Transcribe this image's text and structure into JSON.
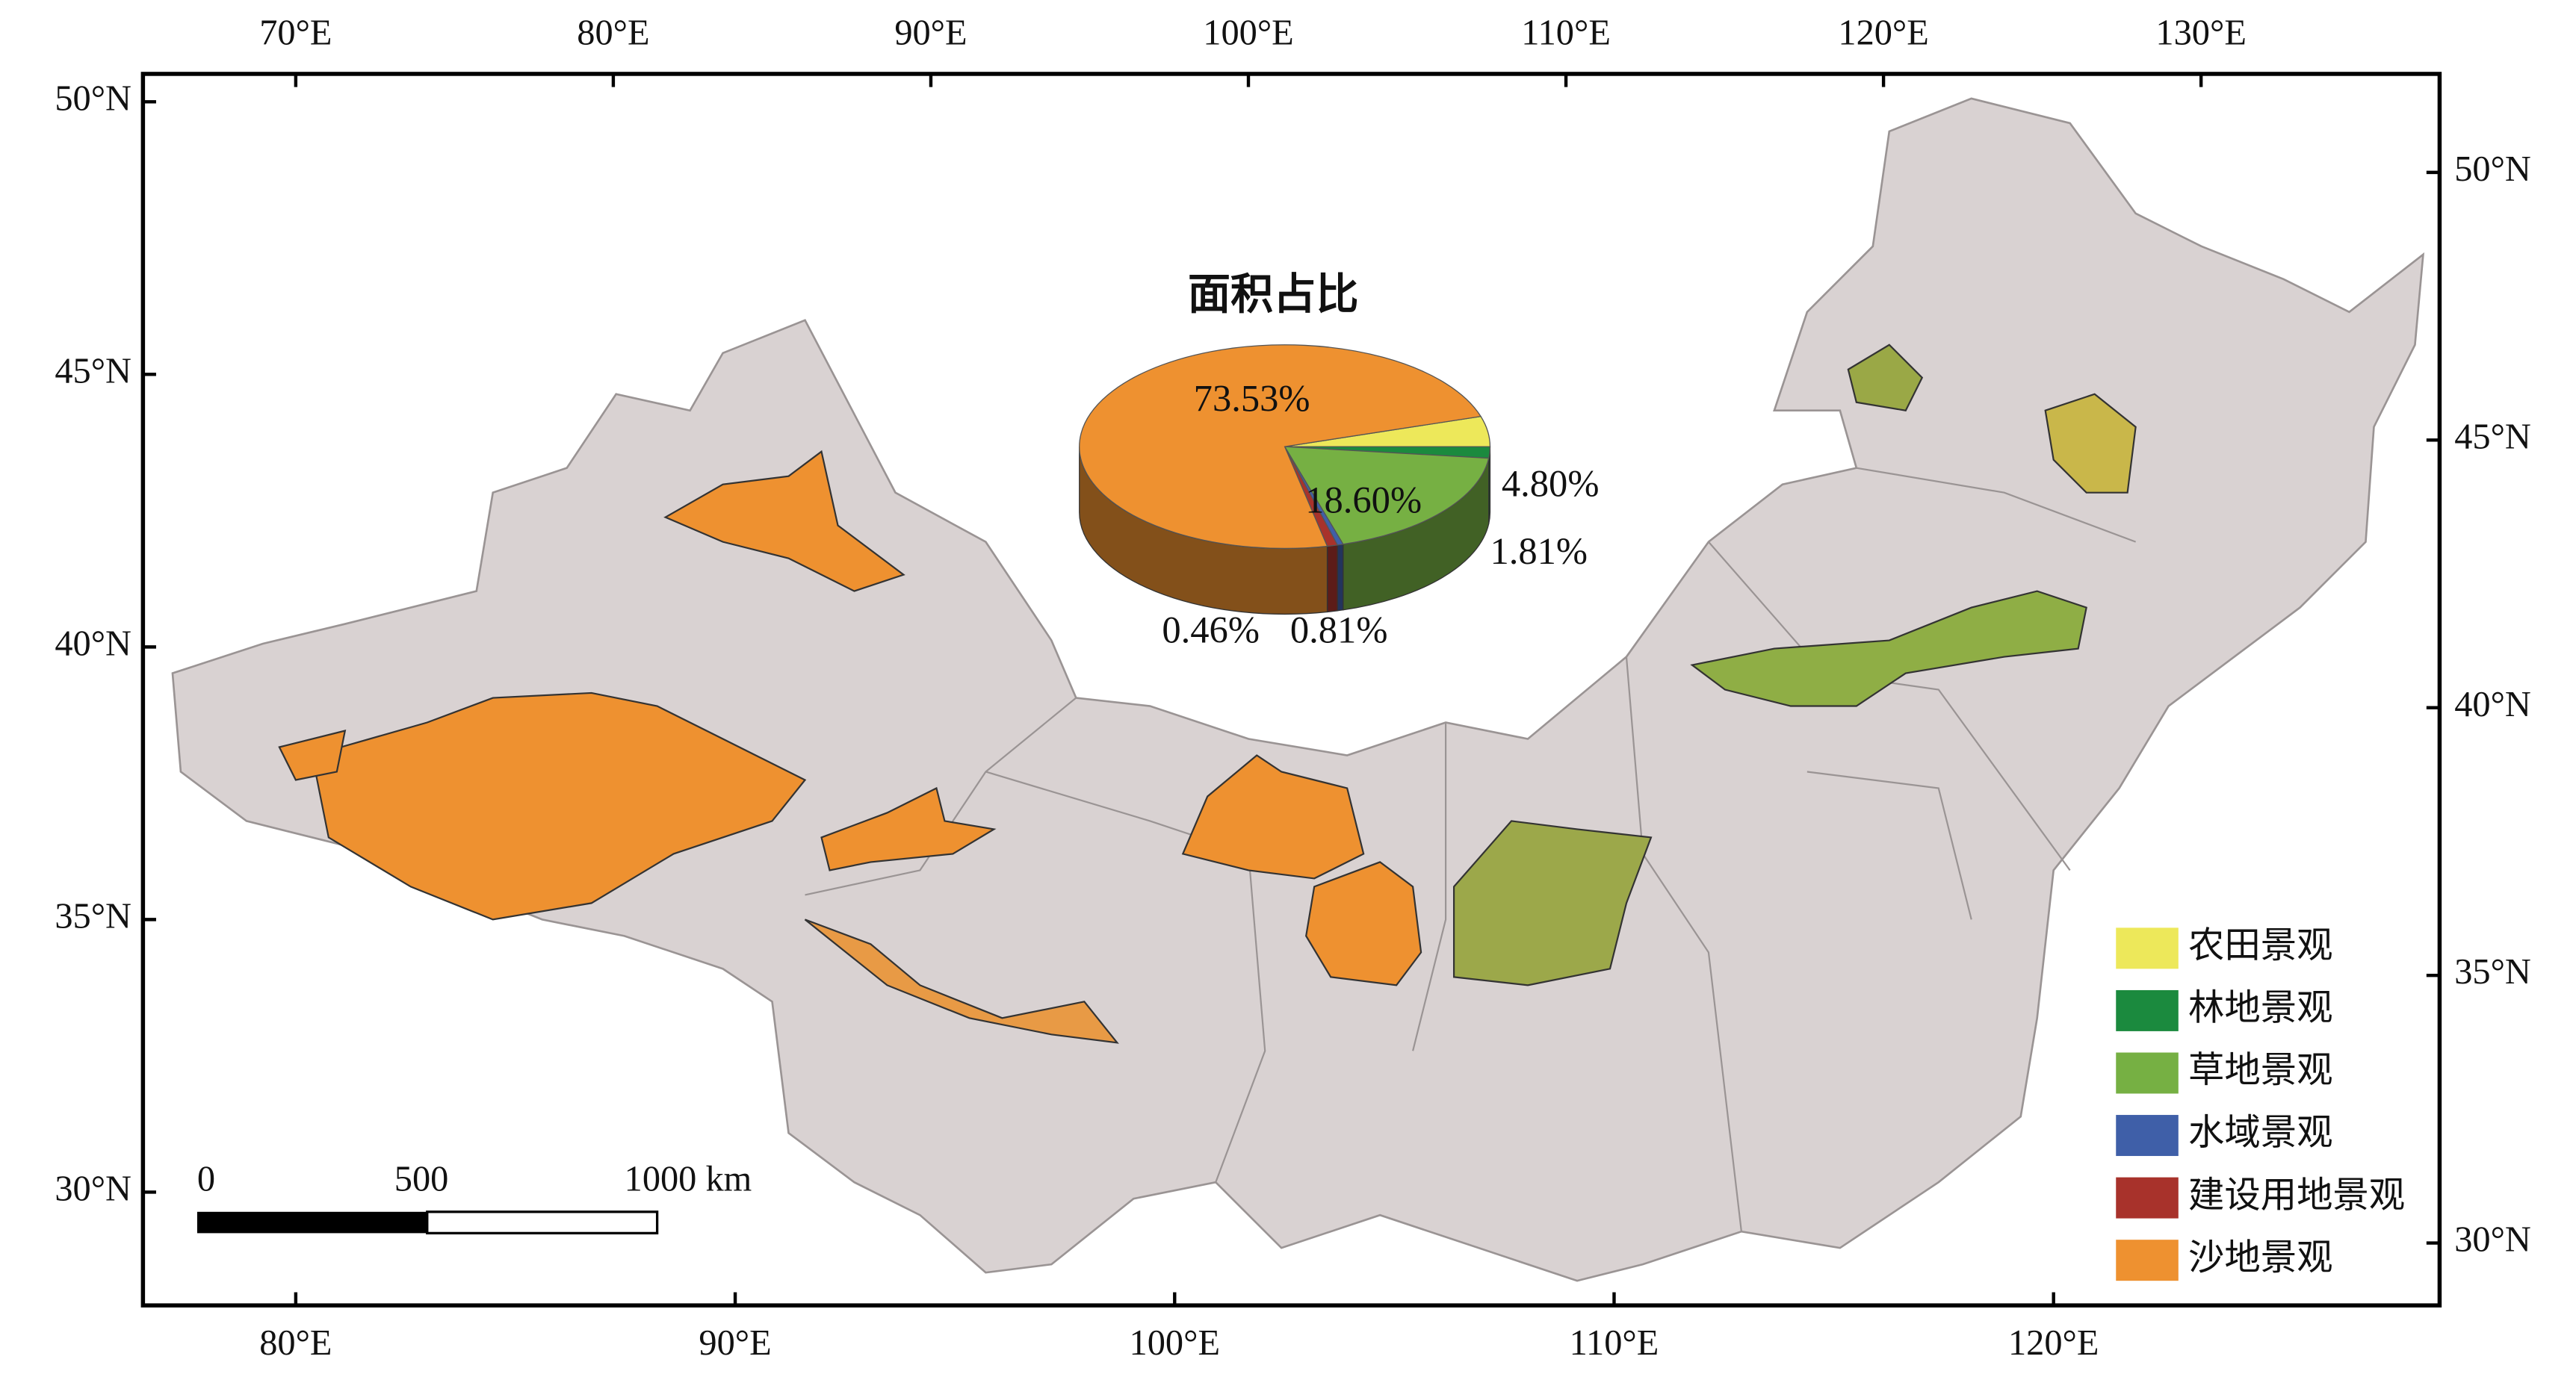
{
  "map": {
    "top_ticks": [
      {
        "value": 70,
        "label": "70°E"
      },
      {
        "value": 80,
        "label": "80°E"
      },
      {
        "value": 90,
        "label": "90°E"
      },
      {
        "value": 100,
        "label": "100°E"
      },
      {
        "value": 110,
        "label": "110°E"
      },
      {
        "value": 120,
        "label": "120°E"
      },
      {
        "value": 130,
        "label": "130°E"
      }
    ],
    "bottom_ticks": [
      {
        "value": 80,
        "label": "80°E"
      },
      {
        "value": 90,
        "label": "90°E"
      },
      {
        "value": 100,
        "label": "100°E"
      },
      {
        "value": 110,
        "label": "110°E"
      },
      {
        "value": 120,
        "label": "120°E"
      }
    ],
    "left_ticks": [
      {
        "value": 50,
        "label": "50°N"
      },
      {
        "value": 45,
        "label": "45°N"
      },
      {
        "value": 40,
        "label": "40°N"
      },
      {
        "value": 35,
        "label": "35°N"
      },
      {
        "value": 30,
        "label": "30°N"
      }
    ],
    "right_ticks": [
      {
        "value": 50,
        "label": "50°N"
      },
      {
        "value": 45,
        "label": "45°N"
      },
      {
        "value": 40,
        "label": "40°N"
      },
      {
        "value": 35,
        "label": "35°N"
      },
      {
        "value": 30,
        "label": "30°N"
      }
    ],
    "scale_bar": [
      0,
      500,
      {
        "value": 1000,
        "label": "1000 km"
      }
    ]
  },
  "chart_data": {
    "type": "pie",
    "title": "面积占比",
    "categories": [
      "农田景观",
      "林地景观",
      "草地景观",
      "水域景观",
      "建设用地景观",
      "沙地景观"
    ],
    "values": [
      4.8,
      1.81,
      18.6,
      0.46,
      0.81,
      73.53
    ],
    "value_labels": [
      "4.80%",
      "1.81%",
      "18.60%",
      "0.46%",
      "0.81%",
      "73.53%"
    ],
    "colors": [
      "#ede85a",
      "#1b8a3e",
      "#76b043",
      "#3f5fa8",
      "#a8322b",
      "#ee9130"
    ],
    "legend": "lower right"
  }
}
